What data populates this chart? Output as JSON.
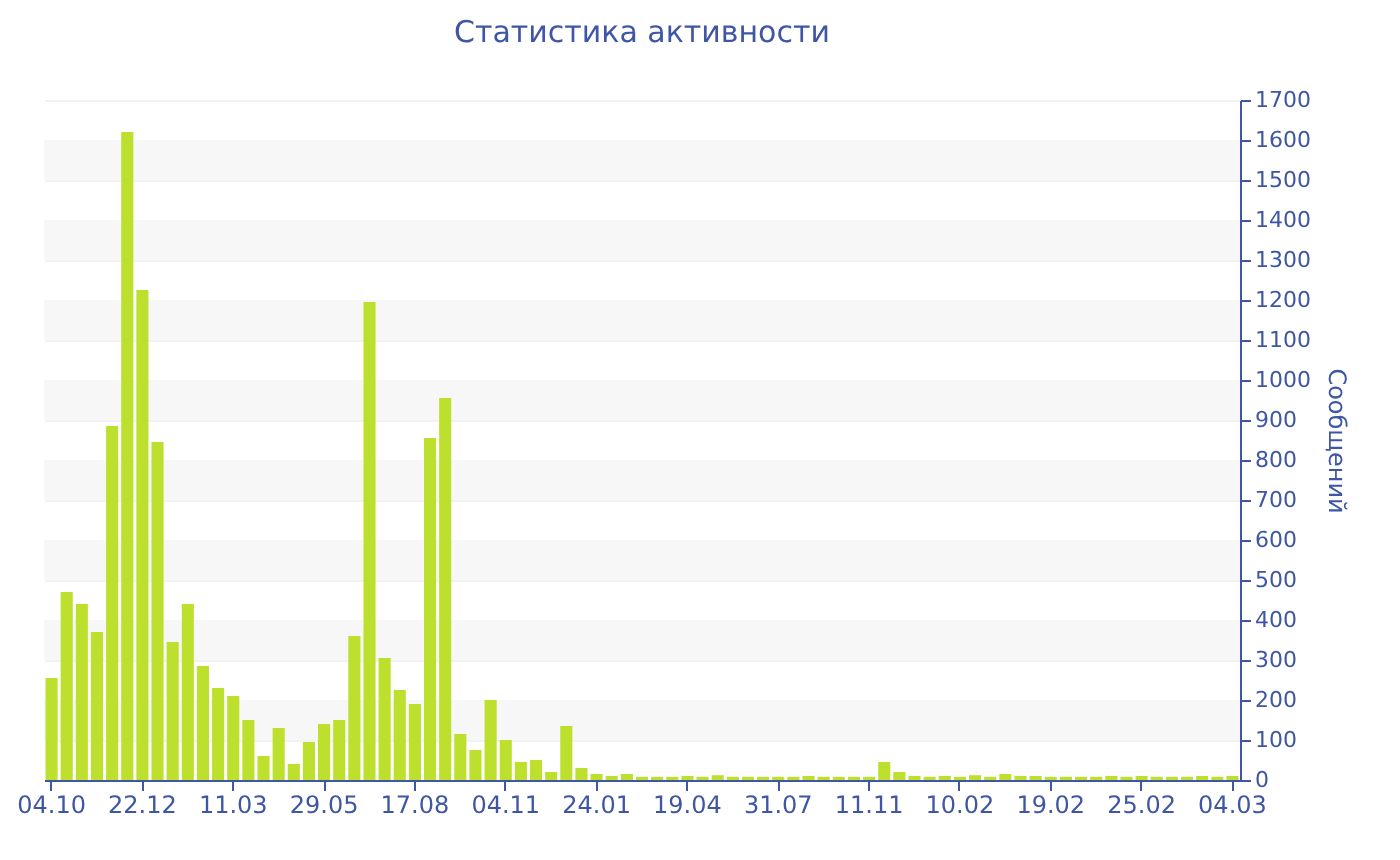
{
  "chart_data": {
    "type": "bar",
    "title": "Статистика активности",
    "ylabel": "Сообщений",
    "categories": [
      "04.10",
      null,
      null,
      null,
      null,
      null,
      "22.12",
      null,
      null,
      null,
      null,
      null,
      "11.03",
      null,
      null,
      null,
      null,
      null,
      "29.05",
      null,
      null,
      null,
      null,
      null,
      "17.08",
      null,
      null,
      null,
      null,
      null,
      "04.11",
      null,
      null,
      null,
      null,
      null,
      "24.01",
      null,
      null,
      null,
      null,
      null,
      "19.04",
      null,
      null,
      null,
      null,
      null,
      "31.07",
      null,
      null,
      null,
      null,
      null,
      "11.11",
      null,
      null,
      null,
      null,
      null,
      "10.02",
      null,
      null,
      null,
      null,
      null,
      "19.02",
      null,
      null,
      null,
      null,
      null,
      "25.02",
      null,
      null,
      null,
      null,
      null,
      "04.03"
    ],
    "values": [
      255,
      470,
      440,
      370,
      885,
      1620,
      1225,
      845,
      345,
      440,
      285,
      230,
      210,
      150,
      60,
      130,
      40,
      95,
      140,
      150,
      360,
      1195,
      305,
      225,
      190,
      855,
      955,
      115,
      75,
      200,
      100,
      45,
      50,
      20,
      135,
      30,
      15,
      10,
      15,
      8,
      8,
      8,
      10,
      8,
      12,
      8,
      8,
      8,
      8,
      8,
      10,
      8,
      8,
      8,
      8,
      45,
      20,
      10,
      8,
      10,
      8,
      12,
      8,
      15,
      10,
      10,
      8,
      8,
      8,
      8,
      10,
      8,
      10,
      8,
      8,
      8,
      10,
      8,
      10
    ],
    "color": "#bde02e",
    "ylim": [
      0,
      1700
    ],
    "yticks": [
      0,
      100,
      200,
      300,
      400,
      500,
      600,
      700,
      800,
      900,
      1000,
      1100,
      1200,
      1300,
      1400,
      1500,
      1600,
      1700
    ],
    "grid": "y"
  }
}
